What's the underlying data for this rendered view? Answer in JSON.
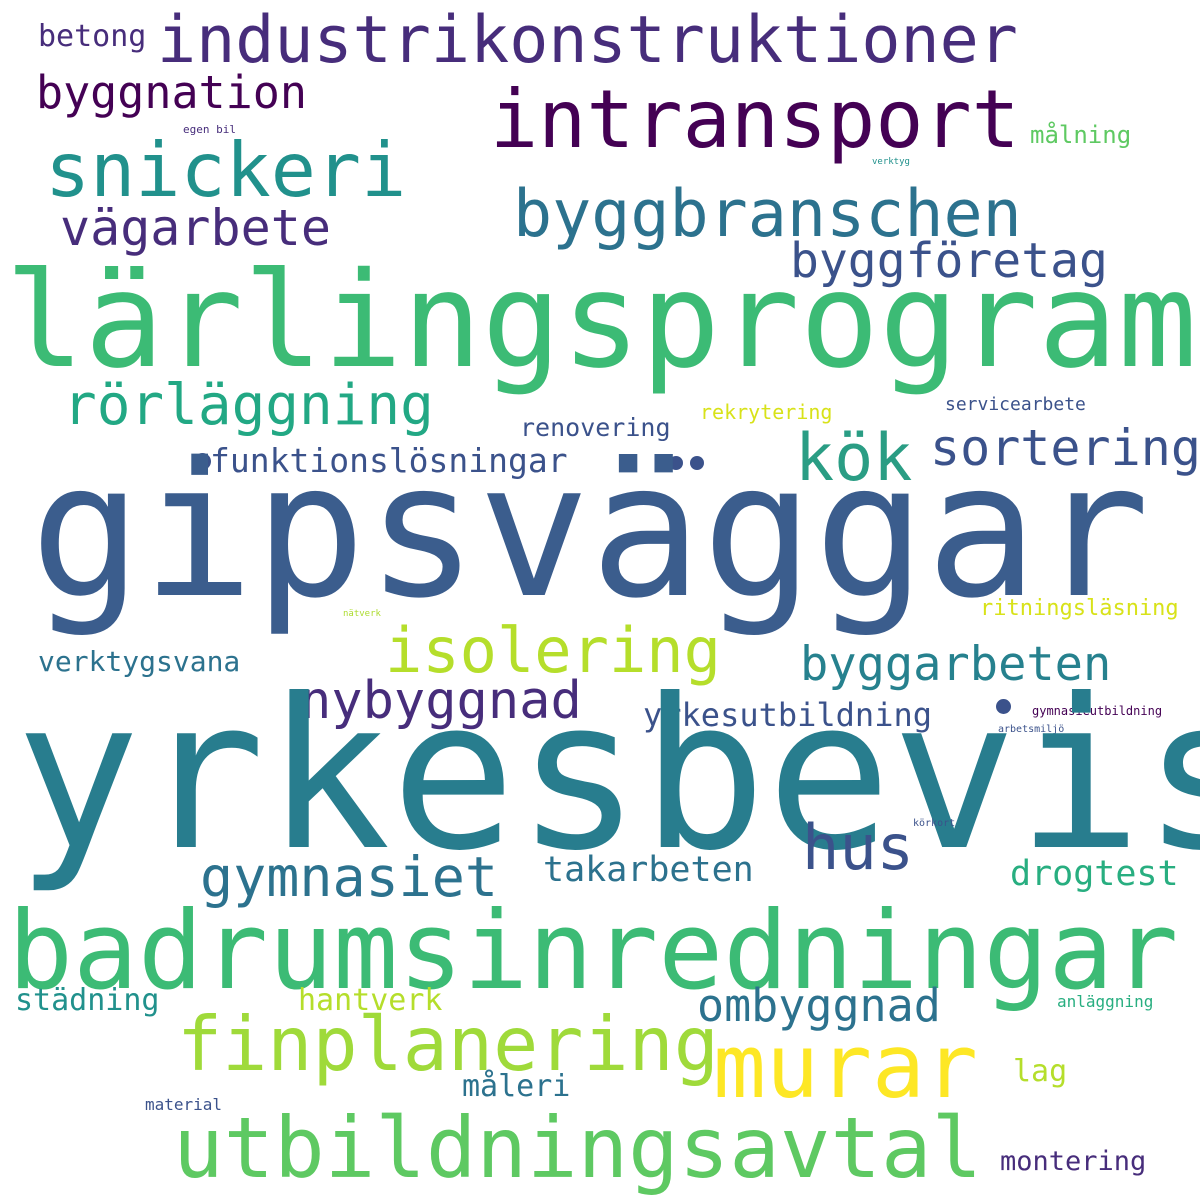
{
  "words": {
    "gipsvaggar": "gipsväggar",
    "yrkesbevis": "yrkesbevis",
    "larlingsprogram": "lärlingsprogram",
    "badrumsinredningar": "badrumsinredningar",
    "industrikonstruktioner": "industrikonstruktioner",
    "intransport": "intransport",
    "utbildningsavtal": "utbildningsavtal",
    "finplanering": "finplanering",
    "murar": "murar",
    "snickeri": "snickeri",
    "byggbranschen": "byggbranschen",
    "rorlaggning": "rörläggning",
    "kok": "kök",
    "isolering": "isolering",
    "nybyggnad": "nybyggnad",
    "gymnasiet": "gymnasiet",
    "hus": "hus",
    "byggnation": "byggnation",
    "vagarbete": "vägarbete",
    "byggforetag": "byggföretag",
    "sortering": "sortering",
    "byggarbeten": "byggarbeten",
    "ombyggnad": "ombyggnad",
    "funktionslosningar": "funktionslösningar",
    "yrkesutbildning": "yrkesutbildning",
    "takarbeten": "takarbeten",
    "drogtest": "drogtest",
    "verktygsvana": "verktygsvana",
    "stadning": "städning",
    "hantverk": "hantverk",
    "maleri": "måleri",
    "betong": "betong",
    "renovering": "renovering",
    "rekrytering": "rekrytering",
    "servicearbete": "servicearbete",
    "ritningslasning": "ritningsläsning",
    "montering": "montering",
    "malning": "målning",
    "lag": "lag",
    "material": "material",
    "anlaggning": "anläggning",
    "gymnasieutbildning": "gymnasieutbildning",
    "arbetsmiljo": "arbetsmiljö",
    "korkort": "körkort",
    "egen_bil": "egen bil",
    "verktyg": "verktyg",
    "natverk": "nätverk"
  },
  "colors": {
    "dark_purple": "#440154",
    "purple": "#472d7b",
    "indigo": "#3b528b",
    "blue": "#2c728e",
    "teal": "#21918c",
    "sea_green": "#28ae80",
    "green": "#5ec962",
    "lime": "#addc30",
    "yellow": "#fde725",
    "background": "#ffffff"
  }
}
